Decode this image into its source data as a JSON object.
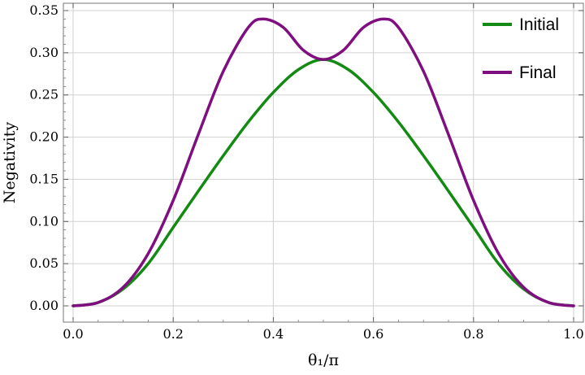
{
  "chart_data": {
    "type": "line",
    "xlabel": "θ₁/π",
    "ylabel": "Negativity",
    "xlim": [
      0.0,
      1.0
    ],
    "ylim": [
      0.0,
      0.35
    ],
    "xticks": [
      "0.0",
      "0.2",
      "0.4",
      "0.6",
      "0.8",
      "1.0"
    ],
    "yticks": [
      "0.00",
      "0.05",
      "0.10",
      "0.15",
      "0.20",
      "0.25",
      "0.30",
      "0.35"
    ],
    "grid": true,
    "legend_position": "top-right",
    "series": [
      {
        "name": "Initial",
        "color": "#138a13",
        "x": [
          0.0,
          0.05,
          0.1,
          0.15,
          0.2,
          0.25,
          0.3,
          0.35,
          0.4,
          0.45,
          0.5,
          0.55,
          0.6,
          0.65,
          0.7,
          0.75,
          0.8,
          0.85,
          0.9,
          0.95,
          1.0
        ],
        "y": [
          0.0,
          0.004,
          0.02,
          0.05,
          0.093,
          0.136,
          0.178,
          0.218,
          0.253,
          0.28,
          0.292,
          0.28,
          0.253,
          0.218,
          0.178,
          0.136,
          0.093,
          0.05,
          0.02,
          0.004,
          0.0
        ]
      },
      {
        "name": "Final",
        "color": "#7f0f80",
        "x": [
          0.0,
          0.05,
          0.1,
          0.15,
          0.2,
          0.25,
          0.3,
          0.35,
          0.38,
          0.42,
          0.46,
          0.5,
          0.54,
          0.58,
          0.62,
          0.65,
          0.7,
          0.75,
          0.8,
          0.85,
          0.9,
          0.95,
          1.0
        ],
        "y": [
          0.0,
          0.004,
          0.022,
          0.062,
          0.125,
          0.203,
          0.278,
          0.33,
          0.34,
          0.33,
          0.303,
          0.292,
          0.303,
          0.33,
          0.34,
          0.33,
          0.278,
          0.203,
          0.125,
          0.062,
          0.022,
          0.004,
          0.0
        ]
      }
    ]
  }
}
